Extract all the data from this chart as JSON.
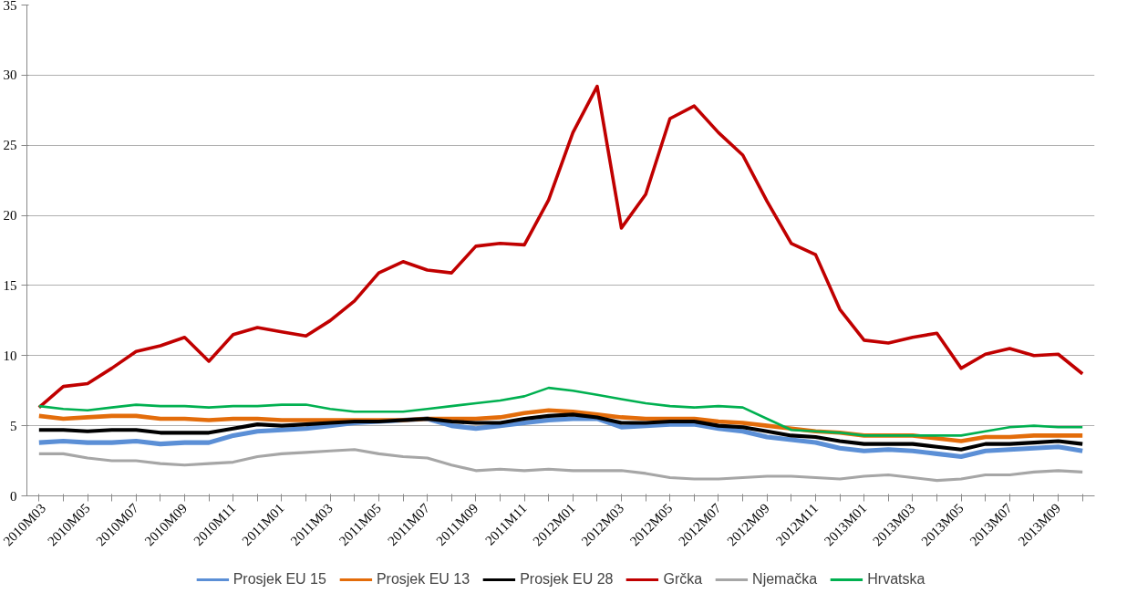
{
  "chart_data": {
    "type": "line",
    "categories": [
      "2010M03",
      null,
      "2010M05",
      null,
      "2010M07",
      null,
      "2010M09",
      null,
      "2010M11",
      null,
      "2011M01",
      null,
      "2011M03",
      null,
      "2011M05",
      null,
      "2011M07",
      null,
      "2011M09",
      null,
      "2011M11",
      null,
      "2012M01",
      null,
      "2012M03",
      null,
      "2012M05",
      null,
      "2012M07",
      null,
      "2012M09",
      null,
      "2012M11",
      null,
      "2013M01",
      null,
      "2013M03",
      null,
      "2013M05",
      null,
      "2013M07",
      null,
      "2013M09",
      null
    ],
    "series": [
      {
        "name": "Prosjek EU 15",
        "color": "#5b8fd6",
        "values": [
          3.8,
          3.9,
          3.8,
          3.8,
          3.9,
          3.7,
          3.8,
          3.8,
          4.3,
          4.6,
          4.7,
          4.8,
          5.0,
          5.2,
          5.3,
          5.4,
          5.5,
          5.0,
          4.8,
          5.0,
          5.2,
          5.4,
          5.5,
          5.5,
          4.9,
          5.0,
          5.1,
          5.1,
          4.8,
          4.6,
          4.2,
          4.0,
          3.8,
          3.4,
          3.2,
          3.3,
          3.2,
          3.0,
          2.8,
          3.2,
          3.3,
          3.4,
          3.5,
          3.2
        ]
      },
      {
        "name": "Prosjek EU 13",
        "color": "#e36c0a",
        "values": [
          5.7,
          5.5,
          5.6,
          5.7,
          5.7,
          5.5,
          5.5,
          5.4,
          5.5,
          5.5,
          5.4,
          5.4,
          5.4,
          5.4,
          5.4,
          5.4,
          5.5,
          5.5,
          5.5,
          5.6,
          5.9,
          6.1,
          6.0,
          5.8,
          5.6,
          5.5,
          5.5,
          5.5,
          5.3,
          5.2,
          5.0,
          4.8,
          4.6,
          4.5,
          4.3,
          4.3,
          4.3,
          4.1,
          3.9,
          4.2,
          4.2,
          4.3,
          4.3,
          4.3
        ]
      },
      {
        "name": "Prosjek EU 28",
        "color": "#000000",
        "values": [
          4.7,
          4.7,
          4.6,
          4.7,
          4.7,
          4.5,
          4.5,
          4.5,
          4.8,
          5.1,
          5.0,
          5.1,
          5.2,
          5.3,
          5.3,
          5.4,
          5.5,
          5.3,
          5.2,
          5.2,
          5.5,
          5.7,
          5.8,
          5.6,
          5.2,
          5.2,
          5.3,
          5.3,
          5.0,
          4.9,
          4.6,
          4.3,
          4.2,
          3.9,
          3.7,
          3.7,
          3.7,
          3.5,
          3.3,
          3.7,
          3.7,
          3.8,
          3.9,
          3.7
        ]
      },
      {
        "name": "Grčka",
        "color": "#c00000",
        "values": [
          6.3,
          7.8,
          8.0,
          9.1,
          10.3,
          10.7,
          11.3,
          9.6,
          11.5,
          12.0,
          11.7,
          11.4,
          12.5,
          13.9,
          15.9,
          16.7,
          16.1,
          15.9,
          17.8,
          18.0,
          17.9,
          21.1,
          25.9,
          29.2,
          19.1,
          21.5,
          26.9,
          27.8,
          25.9,
          24.3,
          21.0,
          18.0,
          17.2,
          13.3,
          11.1,
          10.9,
          11.3,
          11.6,
          9.1,
          10.1,
          10.5,
          10.0,
          10.1,
          8.7
        ]
      },
      {
        "name": "Njemačka",
        "color": "#a6a6a6",
        "values": [
          3.0,
          3.0,
          2.7,
          2.5,
          2.5,
          2.3,
          2.2,
          2.3,
          2.4,
          2.8,
          3.0,
          3.1,
          3.2,
          3.3,
          3.0,
          2.8,
          2.7,
          2.2,
          1.8,
          1.9,
          1.8,
          1.9,
          1.8,
          1.8,
          1.8,
          1.6,
          1.3,
          1.2,
          1.2,
          1.3,
          1.4,
          1.4,
          1.3,
          1.2,
          1.4,
          1.5,
          1.3,
          1.1,
          1.2,
          1.5,
          1.5,
          1.7,
          1.8,
          1.7
        ]
      },
      {
        "name": "Hrvatska",
        "color": "#00b050",
        "values": [
          6.4,
          6.2,
          6.1,
          6.3,
          6.5,
          6.4,
          6.4,
          6.3,
          6.4,
          6.4,
          6.5,
          6.5,
          6.2,
          6.0,
          6.0,
          6.0,
          6.2,
          6.4,
          6.6,
          6.8,
          7.1,
          7.7,
          7.5,
          7.2,
          6.9,
          6.6,
          6.4,
          6.3,
          6.4,
          6.3,
          5.5,
          4.7,
          4.6,
          4.5,
          4.3,
          4.3,
          4.3,
          4.3,
          4.3,
          4.6,
          4.9,
          5.0,
          4.9,
          4.9
        ]
      }
    ],
    "ylim": [
      0,
      35
    ],
    "yticks": [
      0,
      5,
      10,
      15,
      20,
      25,
      30,
      35
    ],
    "grid": "y",
    "legend": "bottom",
    "marker": "none",
    "line_style": "solid"
  }
}
